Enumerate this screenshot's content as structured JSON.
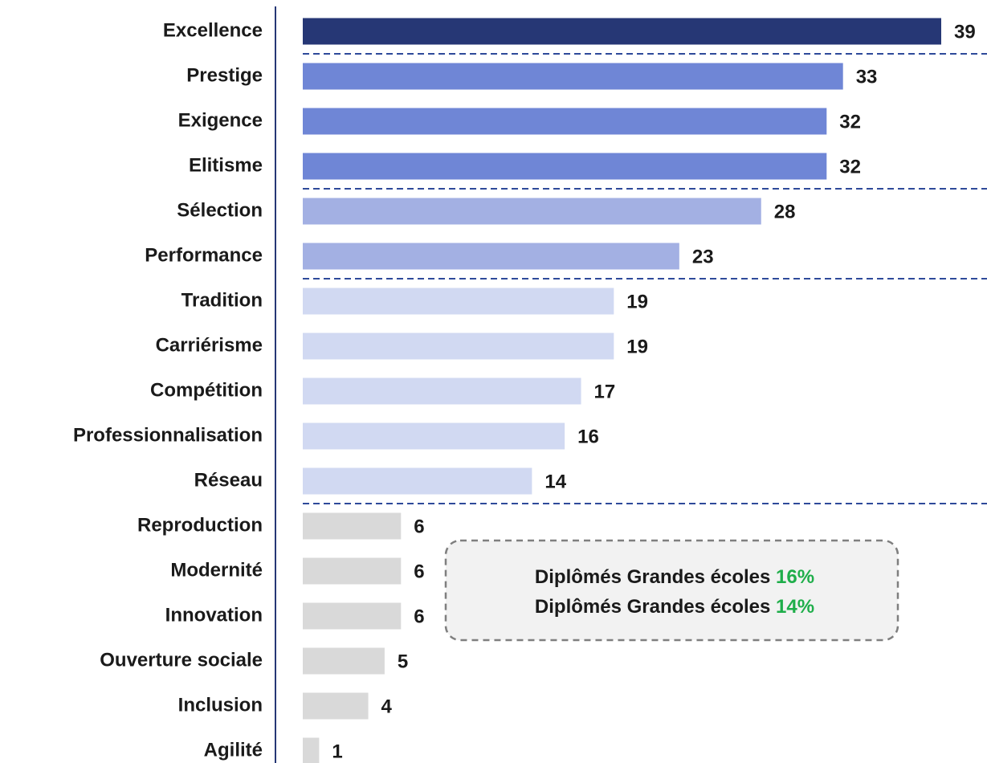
{
  "chart_data": {
    "type": "bar",
    "orientation": "horizontal",
    "categories": [
      "Excellence",
      "Prestige",
      "Exigence",
      "Elitisme",
      "Sélection",
      "Performance",
      "Tradition",
      "Carriérisme",
      "Compétition",
      "Professionnalisation",
      "Réseau",
      "Reproduction",
      "Modernité",
      "Innovation",
      "Ouverture sociale",
      "Inclusion",
      "Agilité"
    ],
    "values": [
      39,
      33,
      32,
      32,
      28,
      23,
      19,
      19,
      17,
      16,
      14,
      6,
      6,
      6,
      5,
      4,
      1
    ],
    "colors": [
      "#263775",
      "#6f86d6",
      "#6f86d6",
      "#6f86d6",
      "#a3b0e3",
      "#a3b0e3",
      "#d1d9f2",
      "#d1d9f2",
      "#d1d9f2",
      "#d1d9f2",
      "#d1d9f2",
      "#d9d9d9",
      "#d9d9d9",
      "#d9d9d9",
      "#d9d9d9",
      "#d9d9d9",
      "#d9d9d9"
    ],
    "annotations": [
      {
        "text": "Diplômés Grandes écoles",
        "highlight": "16%"
      },
      {
        "text": "Diplômés Grandes écoles",
        "highlight": "14%"
      }
    ]
  }
}
